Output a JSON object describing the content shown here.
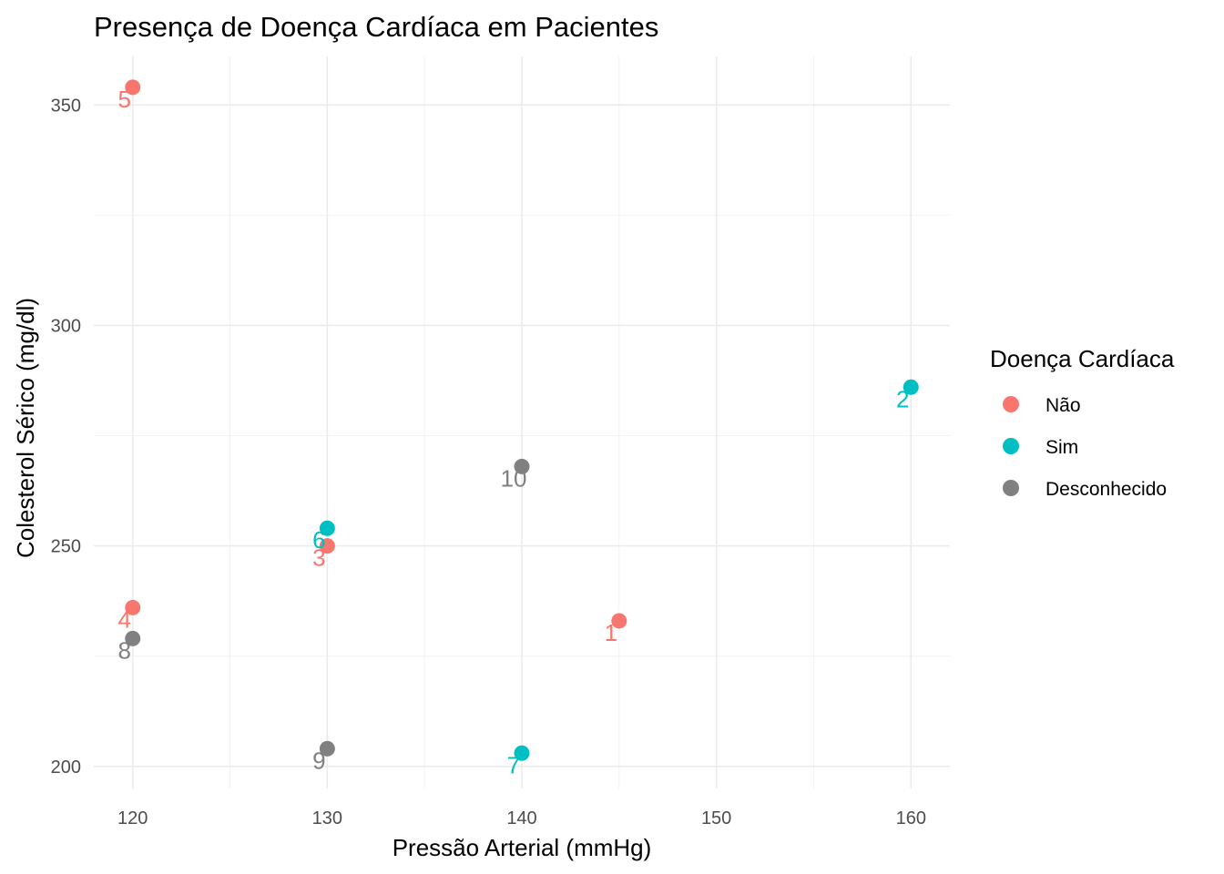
{
  "chart_data": {
    "type": "scatter",
    "title": "Presença de Doença Cardíaca em Pacientes",
    "xlabel": "Pressão Arterial (mmHg)",
    "ylabel": "Colesterol Sérico (mg/dl)",
    "xlim": [
      118,
      162
    ],
    "ylim": [
      195,
      361
    ],
    "x_ticks": [
      120,
      130,
      140,
      150,
      160
    ],
    "x_tick_labels": [
      "120",
      "130",
      "140",
      "150",
      "160"
    ],
    "y_ticks": [
      200,
      250,
      300,
      350
    ],
    "y_tick_labels": [
      "200",
      "250",
      "300",
      "350"
    ],
    "grid": true,
    "legend": {
      "title": "Doença Cardíaca",
      "placement": "right",
      "entries": [
        {
          "name": "Não",
          "color": "#F8766D"
        },
        {
          "name": "Sim",
          "color": "#00BFC4"
        },
        {
          "name": "Desconhecido",
          "color": "#808080"
        }
      ]
    },
    "series": [
      {
        "name": "Não",
        "color": "#F8766D",
        "points": [
          {
            "label": "1",
            "x": 145,
            "y": 233
          },
          {
            "label": "3",
            "x": 130,
            "y": 250
          },
          {
            "label": "4",
            "x": 120,
            "y": 236
          },
          {
            "label": "5",
            "x": 120,
            "y": 354
          }
        ]
      },
      {
        "name": "Sim",
        "color": "#00BFC4",
        "points": [
          {
            "label": "2",
            "x": 160,
            "y": 286
          },
          {
            "label": "6",
            "x": 130,
            "y": 254
          },
          {
            "label": "7",
            "x": 140,
            "y": 203
          }
        ]
      },
      {
        "name": "Desconhecido",
        "color": "#808080",
        "points": [
          {
            "label": "8",
            "x": 120,
            "y": 229
          },
          {
            "label": "9",
            "x": 130,
            "y": 204
          },
          {
            "label": "10",
            "x": 140,
            "y": 268
          }
        ]
      }
    ]
  }
}
